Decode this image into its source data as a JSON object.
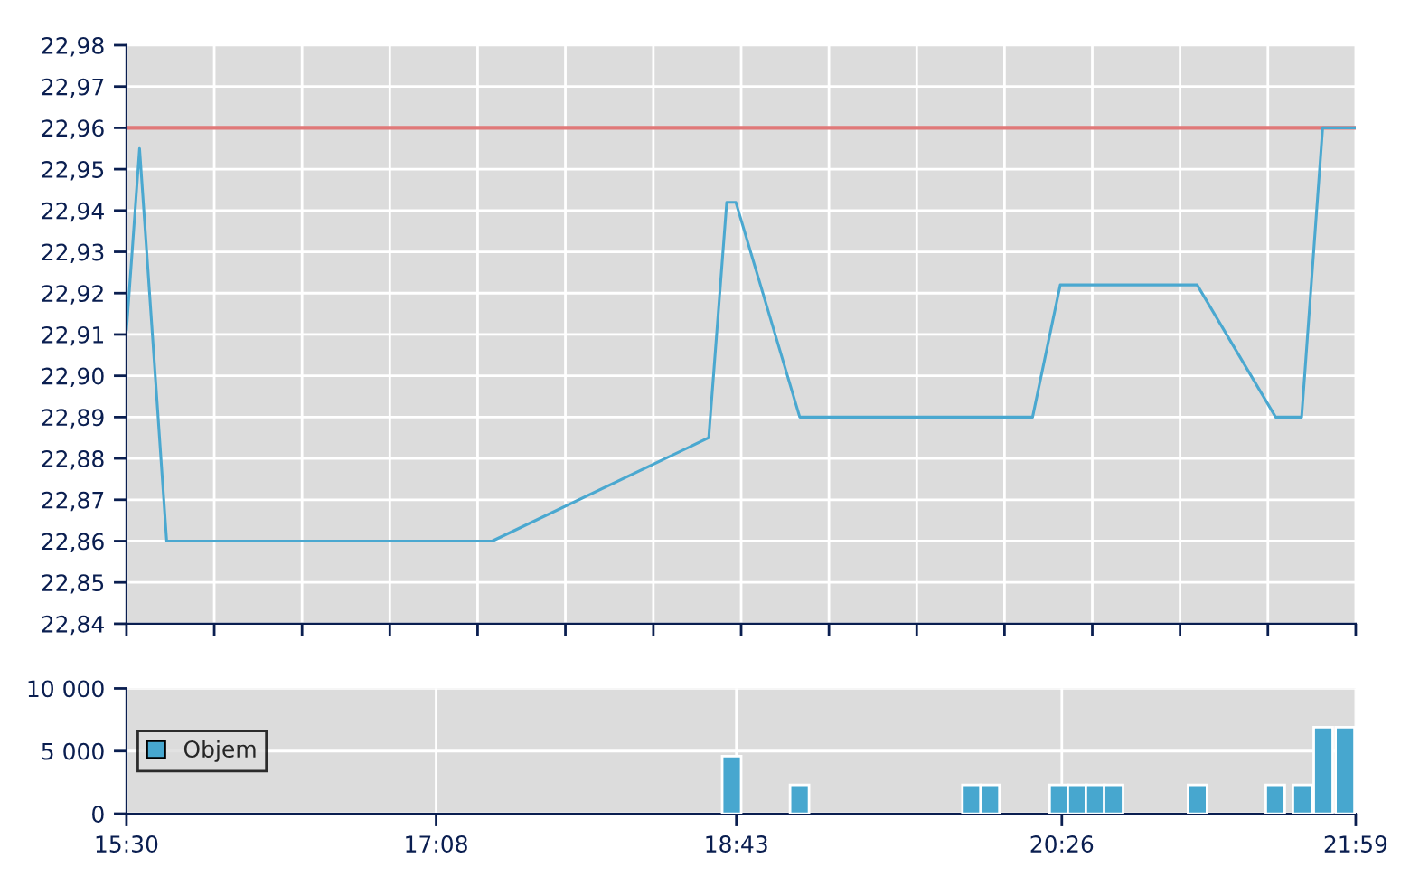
{
  "chart_data": [
    {
      "type": "line",
      "xlim": [
        15.5,
        21.9833
      ],
      "ylim": [
        22.84,
        22.98
      ],
      "x": [
        15.5,
        15.569,
        15.712,
        17.429,
        18.571,
        18.666,
        18.714,
        19.051,
        20.279,
        20.425,
        21.147,
        21.561,
        21.698,
        21.809,
        21.9833
      ],
      "series": [
        {
          "color": "#4aa8d0",
          "values": [
            22.911,
            22.955,
            22.86,
            22.86,
            22.885,
            22.942,
            22.942,
            22.89,
            22.89,
            22.922,
            22.922,
            22.89,
            22.89,
            22.96,
            22.96
          ]
        }
      ],
      "ref_lines": [
        {
          "axis": "y",
          "value": 22.96,
          "color": "#e07878"
        }
      ],
      "xticks": [
        {
          "value": 15.5,
          "label": null
        },
        {
          "value": 15.963,
          "label": null
        },
        {
          "value": 16.426,
          "label": null
        },
        {
          "value": 16.889,
          "label": null
        },
        {
          "value": 17.352,
          "label": null
        },
        {
          "value": 17.815,
          "label": null
        },
        {
          "value": 18.279,
          "label": null
        },
        {
          "value": 18.742,
          "label": null
        },
        {
          "value": 19.205,
          "label": null
        },
        {
          "value": 19.668,
          "label": null
        },
        {
          "value": 20.131,
          "label": null
        },
        {
          "value": 20.594,
          "label": null
        },
        {
          "value": 21.057,
          "label": null
        },
        {
          "value": 21.52,
          "label": null
        },
        {
          "value": 21.9833,
          "label": null
        }
      ],
      "yticks": [
        {
          "value": 22.84,
          "label": "22,84"
        },
        {
          "value": 22.85,
          "label": "22,85"
        },
        {
          "value": 22.86,
          "label": "22,86"
        },
        {
          "value": 22.87,
          "label": "22,87"
        },
        {
          "value": 22.88,
          "label": "22,88"
        },
        {
          "value": 22.89,
          "label": "22,89"
        },
        {
          "value": 22.9,
          "label": "22,90"
        },
        {
          "value": 22.91,
          "label": "22,91"
        },
        {
          "value": 22.92,
          "label": "22,92"
        },
        {
          "value": 22.93,
          "label": "22,93"
        },
        {
          "value": 22.94,
          "label": "22,94"
        },
        {
          "value": 22.95,
          "label": "22,95"
        },
        {
          "value": 22.96,
          "label": "22,96"
        },
        {
          "value": 22.97,
          "label": "22,97"
        },
        {
          "value": 22.98,
          "label": "22,98"
        }
      ],
      "tick_labels": "y",
      "grid": true,
      "marker": "none"
    },
    {
      "type": "bar",
      "xlim": [
        15.5,
        21.9833
      ],
      "ylim": [
        0,
        10000
      ],
      "x": [
        18.692,
        19.05,
        19.959,
        20.054,
        20.419,
        20.515,
        20.61,
        20.706,
        21.149,
        21.559,
        21.702,
        21.812,
        21.927
      ],
      "series": [
        {
          "name": "Objem",
          "color": "#47a7cf",
          "values": [
            4600,
            2300,
            2300,
            2300,
            2300,
            2300,
            2300,
            2300,
            2300,
            2300,
            2300,
            6900,
            6900
          ]
        }
      ],
      "xticks": [
        {
          "value": 15.5,
          "label": "15:30"
        },
        {
          "value": 17.1333,
          "label": "17:08"
        },
        {
          "value": 18.7167,
          "label": "18:43"
        },
        {
          "value": 20.4333,
          "label": "20:26"
        },
        {
          "value": 21.9833,
          "label": "21:59"
        }
      ],
      "yticks": [
        {
          "value": 0,
          "label": "0"
        },
        {
          "value": 5000,
          "label": "5 000"
        },
        {
          "value": 10000,
          "label": "10 000"
        }
      ],
      "grid": true,
      "legend": "left"
    }
  ]
}
